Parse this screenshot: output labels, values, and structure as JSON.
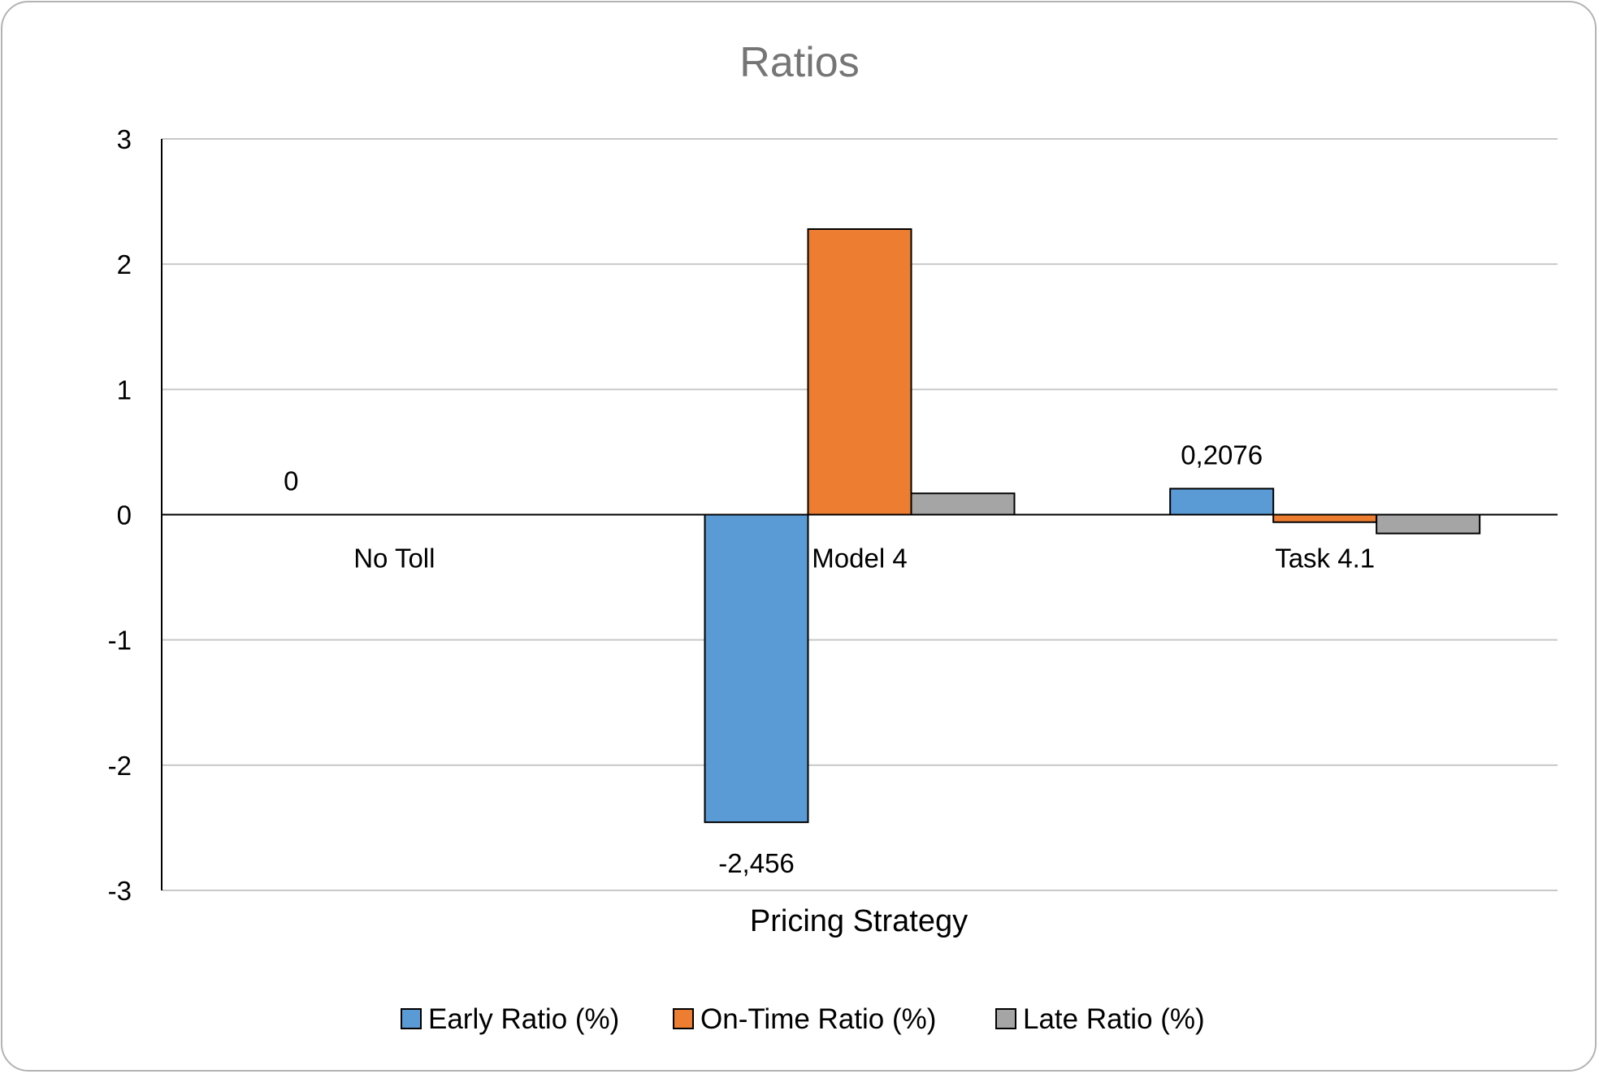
{
  "chart_data": {
    "type": "bar",
    "title": "Ratios",
    "xlabel": "Pricing Strategy",
    "ylabel": "",
    "categories": [
      "No Toll",
      "Model 4",
      "Task 4.1"
    ],
    "series": [
      {
        "name": "Early Ratio (%)",
        "color": "#5b9bd5",
        "values": [
          0,
          -2.456,
          0.2076
        ]
      },
      {
        "name": "On-Time Ratio (%)",
        "color": "#ed7d31",
        "values": [
          0,
          2.28,
          -0.06
        ]
      },
      {
        "name": "Late Ratio (%)",
        "color": "#a5a5a5",
        "values": [
          0,
          0.17,
          -0.15
        ]
      }
    ],
    "data_labels": [
      {
        "series": 0,
        "category": 0,
        "text": "0"
      },
      {
        "series": 0,
        "category": 1,
        "text": "-2,456"
      },
      {
        "series": 0,
        "category": 2,
        "text": "0,2076"
      }
    ],
    "ylim": [
      -3,
      3
    ],
    "yticks": [
      3,
      2,
      1,
      0,
      -1,
      -2,
      -3
    ],
    "grid": true,
    "legend_position": "bottom"
  }
}
